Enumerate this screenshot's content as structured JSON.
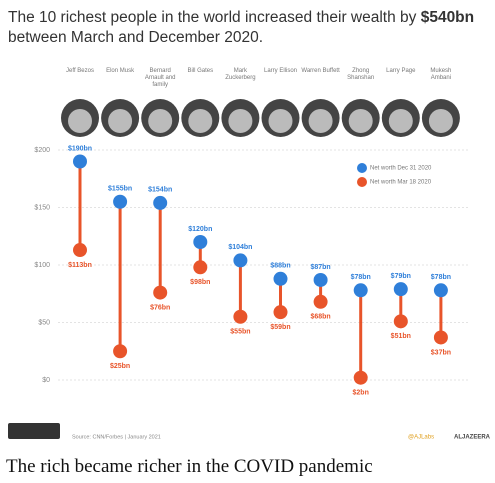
{
  "chart_data": {
    "type": "dumbbell",
    "title": [
      "The 10 richest people in the world increased their wealth by ",
      "$540bn",
      " between March and December 2020."
    ],
    "categories": [
      "Jeff Bezos",
      "Elon Musk",
      "Bernard Arnault and family",
      "Bill Gates",
      "Mark Zuckerberg",
      "Larry Ellison",
      "Warren Buffett",
      "Zhong Shanshan",
      "Larry Page",
      "Mukesh Ambani"
    ],
    "series": [
      {
        "name": "Net worth Dec 31 2020",
        "color": "#2f7fd9",
        "values": [
          190,
          155,
          154,
          120,
          104,
          88,
          87,
          78,
          79,
          78
        ],
        "value_labels": [
          "$190bn",
          "$155bn",
          "$154bn",
          "$120bn",
          "$104bn",
          "$88bn",
          "$87bn",
          "$78bn",
          "$79bn",
          "$78bn"
        ]
      },
      {
        "name": "Net worth Mar 18 2020",
        "color": "#e8542a",
        "values": [
          113,
          25,
          76,
          98,
          55,
          59,
          68,
          2,
          51,
          37
        ],
        "value_labels": [
          "$113bn",
          "$25bn",
          "$76bn",
          "$98bn",
          "$55bn",
          "$59bn",
          "$68bn",
          "$2bn",
          "$51bn",
          "$37bn"
        ]
      }
    ],
    "ylim": [
      0,
      200
    ],
    "yticks": [
      {
        "value": 0,
        "label": "$0"
      },
      {
        "value": 50,
        "label": "$50"
      },
      {
        "value": 100,
        "label": "$100"
      },
      {
        "value": 150,
        "label": "$150"
      },
      {
        "value": 200,
        "label": "$200"
      }
    ],
    "grid": true,
    "legend": "top-right",
    "source": "Source: CNN/Forbes | January 2021",
    "credit": "@AJLabs",
    "brand": "ALJAZEERA",
    "caption": "The rich became richer in the COVID pandemic"
  }
}
